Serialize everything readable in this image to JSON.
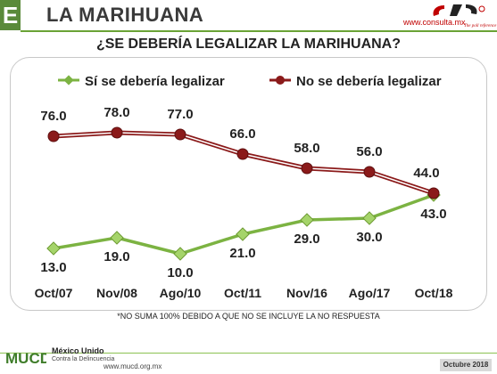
{
  "header": {
    "section_letter": "E",
    "title": "LA MARIHUANA",
    "brand_url": "www.consulta.mx",
    "brand_tagline": "The poll reference"
  },
  "chart_data": {
    "type": "line",
    "title": "¿SE DEBERÍA LEGALIZAR LA MARIHUANA?",
    "categories": [
      "Oct/07",
      "Nov/08",
      "Ago/10",
      "Oct/11",
      "Nov/16",
      "Ago/17",
      "Oct/18"
    ],
    "series": [
      {
        "name": "Sí se debería legalizar",
        "values": [
          13.0,
          19.0,
          10.0,
          21.0,
          29.0,
          30.0,
          43.0
        ],
        "value_labels": [
          "13.0",
          "19.0",
          "10.0",
          "21.0",
          "29.0",
          "30.0",
          "43.0"
        ],
        "color": "#7cb342"
      },
      {
        "name": "No se debería legalizar",
        "values": [
          76.0,
          78.0,
          77.0,
          66.0,
          58.0,
          56.0,
          44.0
        ],
        "value_labels": [
          "76.0",
          "78.0",
          "77.0",
          "66.0",
          "58.0",
          "56.0",
          "44.0"
        ],
        "color": "#8b1a1a"
      }
    ],
    "legend_position": "top",
    "grid": false
  },
  "footnote": "*NO SUMA 100% DEBIDO A QUE NO SE INCLUYE LA NO RESPUESTA",
  "footer": {
    "logo_text": "MUCD",
    "org_name": "México Unido",
    "org_subtitle": "Contra la Delincuencia",
    "url": "www.mucd.org.mx",
    "date": "Octubre 2018"
  }
}
